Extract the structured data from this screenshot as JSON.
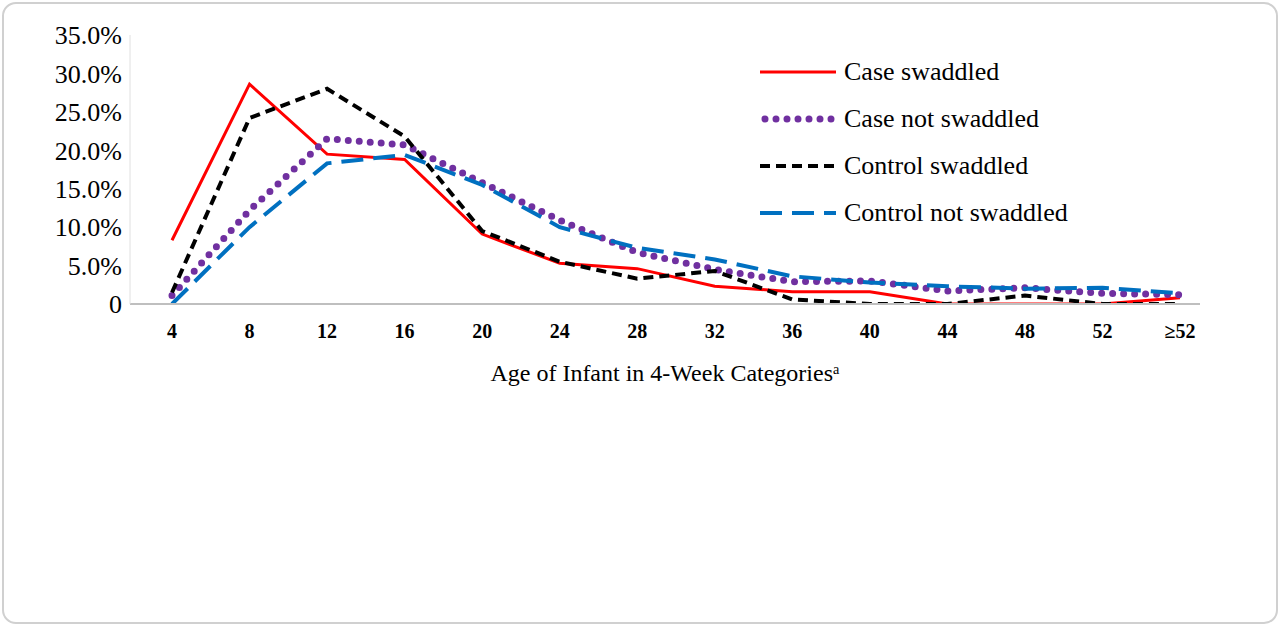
{
  "chart_data": {
    "type": "line",
    "x_label": "Age of Infant in 4-Week Categoriesᵃ",
    "categories": [
      "4",
      "8",
      "12",
      "16",
      "20",
      "24",
      "28",
      "32",
      "36",
      "40",
      "44",
      "48",
      "52",
      "≥52"
    ],
    "series": [
      {
        "name": "Case swaddled",
        "color": "#ff0000",
        "line_style": "solid",
        "values": [
          8.3,
          28.6,
          19.5,
          18.8,
          9.1,
          5.3,
          4.6,
          2.3,
          1.6,
          1.6,
          0,
          0,
          0,
          0.8
        ]
      },
      {
        "name": "Case not swaddled",
        "color": "#7030a0",
        "line_style": "dotted",
        "values": [
          1.1,
          12.2,
          21.5,
          20.7,
          15.8,
          10.9,
          6.7,
          4.5,
          2.9,
          3.0,
          1.7,
          2.1,
          1.4,
          1.2
        ]
      },
      {
        "name": "Control swaddled",
        "color": "#000000",
        "line_style": "dashed",
        "values": [
          1.5,
          24.2,
          28.0,
          21.8,
          9.5,
          5.5,
          3.3,
          4.3,
          0.6,
          0,
          0,
          1.1,
          0,
          0
        ]
      },
      {
        "name": "Control not swaddled",
        "color": "#0070c0",
        "line_style": "longdash",
        "values": [
          0,
          10.0,
          18.3,
          19.4,
          15.5,
          10.0,
          7.3,
          5.8,
          3.6,
          2.8,
          2.3,
          2.0,
          2.1,
          1.4
        ]
      }
    ],
    "ylim": [
      0,
      35
    ],
    "yticks": [
      0,
      {
        "value": 5,
        "label": "5.0%"
      },
      {
        "value": 10,
        "label": "10.0%"
      },
      {
        "value": 15,
        "label": "15.0%"
      },
      {
        "value": 20,
        "label": "20.0%"
      },
      {
        "value": 25,
        "label": "25.0%"
      },
      {
        "value": 30,
        "label": "30.0%"
      },
      {
        "value": 35,
        "label": "35.0%"
      }
    ],
    "grid": false,
    "legend": "upper right"
  }
}
